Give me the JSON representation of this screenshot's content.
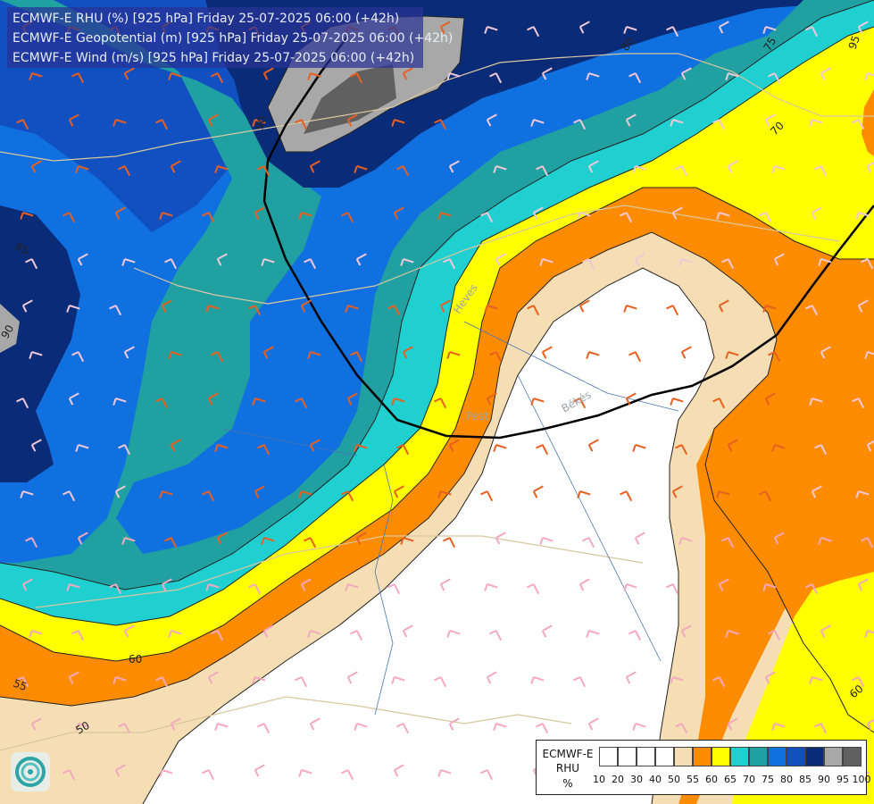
{
  "header": {
    "lines": [
      "ECMWF-E RHU (%) [925 hPa] Friday 25-07-2025 06:00 (+42h)",
      "ECMWF-E Geopotential (m) [925 hPa] Friday 25-07-2025 06:00 (+42h)",
      "ECMWF-E Wind (m/s) [925 hPa] Friday 25-07-2025 06:00 (+42h)"
    ]
  },
  "contour_labels": {
    "c90": "90",
    "c85": "85",
    "c75": "75",
    "c70": "70",
    "c60a": "60",
    "c60b": "60",
    "c55": "55",
    "c50": "50",
    "c80": "80",
    "c95": "95"
  },
  "place_labels": {
    "pest": "Pest",
    "bekes": "Békés",
    "heves": "Heves"
  },
  "legend": {
    "line1": "ECMWF-E",
    "line2": "RHU",
    "line3": "%",
    "ticks": [
      "10",
      "20",
      "30",
      "40",
      "50",
      "55",
      "60",
      "65",
      "70",
      "75",
      "80",
      "85",
      "90",
      "95",
      "100"
    ],
    "colors": [
      "#ffffff",
      "#ffffff",
      "#ffffff",
      "#ffffff",
      "#f5deb3",
      "#ff8c00",
      "#ffff00",
      "#20d0d0",
      "#20a0a0",
      "#1070e0",
      "#1050c0",
      "#0a2c78",
      "#a8a8a8",
      "#606060"
    ]
  },
  "colors": {
    "rhu_50": "#f5deb3",
    "rhu_55": "#ff8c00",
    "rhu_60": "#ffff00",
    "rhu_65": "#20d0d0",
    "rhu_70": "#20a0a0",
    "rhu_75": "#1070e0",
    "rhu_80": "#1050c0",
    "rhu_85": "#0a2c78",
    "rhu_90": "#a8a8a8",
    "rhu_95": "#606060"
  }
}
